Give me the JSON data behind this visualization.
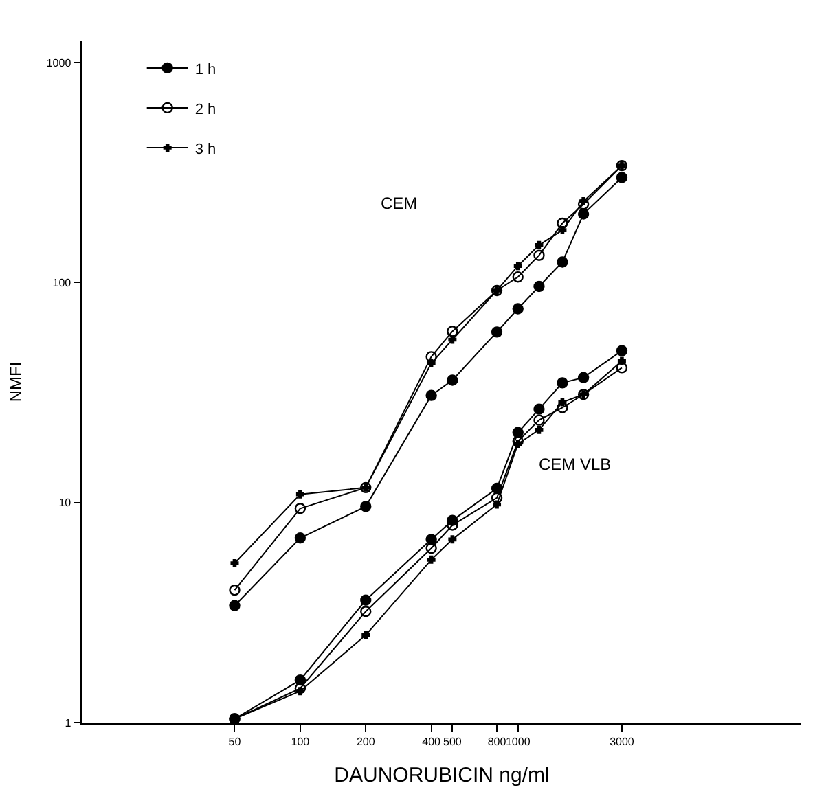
{
  "chart_data": {
    "type": "line",
    "xlabel": "DAUNORUBICIN ng/ml",
    "ylabel": "NMFI",
    "log": "xy",
    "legend": "top left",
    "xlim": [
      10,
      20000
    ],
    "xticks": [
      50,
      100,
      200,
      400,
      500,
      800,
      1000,
      3000
    ],
    "ylim": [
      1,
      1250
    ],
    "yticks": [
      1,
      10,
      100,
      1000
    ],
    "x": [
      50,
      100,
      200,
      400,
      500,
      800,
      1000,
      1250,
      1600,
      2000,
      3000
    ],
    "series": [
      {
        "name": "1 h",
        "color": "#000000",
        "marker": "circle",
        "values": [
          3.4,
          6.9,
          9.6,
          30.7,
          36,
          59.6,
          76,
          96,
          124,
          205,
          300
        ]
      },
      {
        "name": "2 h",
        "color": "#000000",
        "marker": "circle-open",
        "values": [
          4.0,
          9.4,
          11.7,
          46,
          60,
          92,
          106,
          133,
          186,
          227,
          340
        ]
      },
      {
        "name": "3 h",
        "color": "#000000",
        "marker": "cross",
        "values": [
          5.3,
          10.9,
          11.7,
          43,
          55,
          92,
          119,
          148,
          173,
          234,
          340
        ]
      },
      {
        "color": "#000000",
        "marker": "circle",
        "values": [
          1.04,
          1.56,
          3.6,
          6.8,
          8.3,
          11.6,
          20.8,
          26.6,
          35,
          37,
          49
        ]
      },
      {
        "color": "#000000",
        "marker": "circle-open",
        "values": [
          1.04,
          1.43,
          3.2,
          6.2,
          7.9,
          10.5,
          19,
          23.7,
          27,
          31,
          41
        ]
      },
      {
        "color": "#000000",
        "marker": "cross",
        "values": [
          1.04,
          1.39,
          2.5,
          5.5,
          6.8,
          9.8,
          18.5,
          21.4,
          28.6,
          31,
          44
        ]
      }
    ],
    "annotations": [
      "CEM",
      "CEM VLB"
    ]
  }
}
